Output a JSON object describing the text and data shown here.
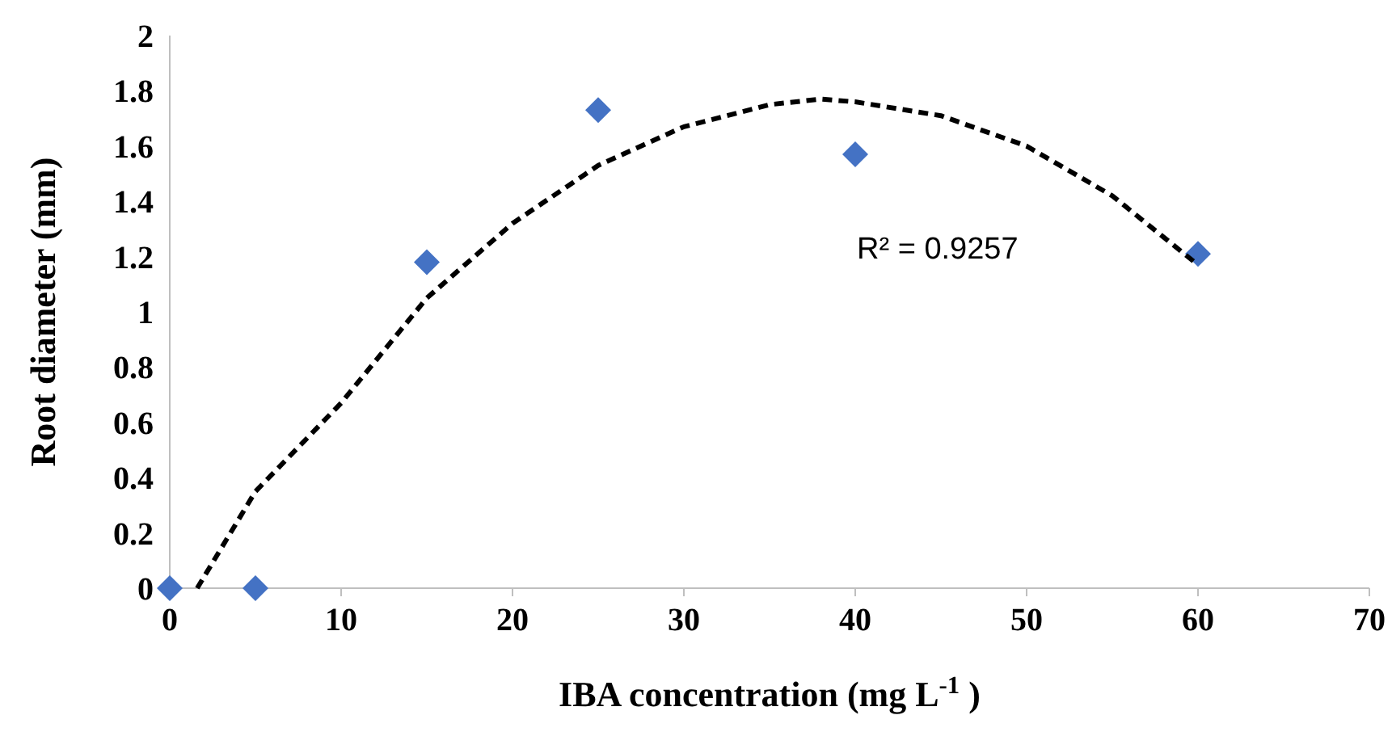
{
  "chart_data": {
    "type": "scatter",
    "xlabel": "IBA concentration (mg L$^{-1}$ )",
    "ylabel": "Root diameter (mm)",
    "xlim": [
      0,
      70
    ],
    "xticks": [
      0,
      10,
      20,
      30,
      40,
      50,
      60,
      70
    ],
    "ylim": [
      0,
      2
    ],
    "yticks": [
      0,
      0.2,
      0.4,
      0.6,
      0.8,
      1,
      1.2,
      1.4,
      1.6,
      1.8,
      2
    ],
    "marker": "diamond",
    "x": [
      0,
      5,
      15,
      25,
      40,
      60
    ],
    "series": [
      {
        "color": "#4472c4",
        "values": [
          0,
          0,
          1.18,
          1.73,
          1.57,
          1.21
        ]
      },
      {
        "type": "line",
        "color": "#000000",
        "line_style": "dashed",
        "marker": "none",
        "x": [
          1.6,
          5,
          10,
          15,
          20,
          25,
          30,
          35,
          38,
          40,
          45,
          50,
          55,
          60
        ],
        "values": [
          0,
          0.35,
          0.67,
          1.05,
          1.32,
          1.53,
          1.67,
          1.75,
          1.77,
          1.76,
          1.71,
          1.6,
          1.42,
          1.17
        ]
      }
    ],
    "annotations": [
      "R² = 0.9257"
    ]
  }
}
